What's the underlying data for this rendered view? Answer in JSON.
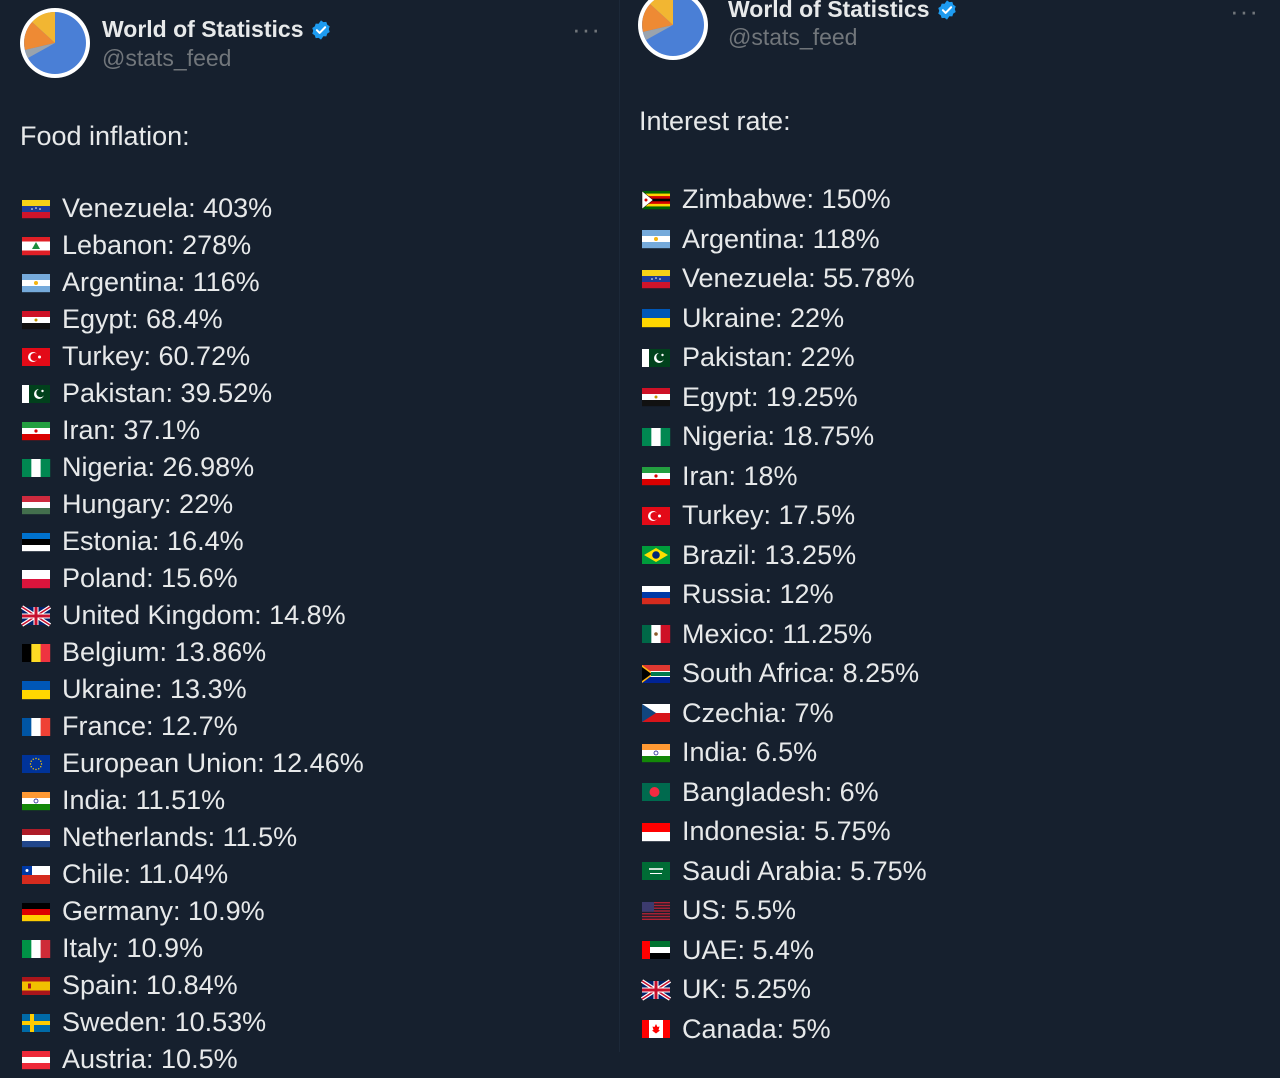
{
  "left_tweet": {
    "author": {
      "name": "World of Statistics",
      "handle": "@stats_feed"
    },
    "more_label": "···",
    "heading": "Food inflation:",
    "items": [
      {
        "text": "Venezuela: 403%",
        "flag": "ve"
      },
      {
        "text": "Lebanon: 278%",
        "flag": "lb"
      },
      {
        "text": "Argentina: 116%",
        "flag": "ar"
      },
      {
        "text": "Egypt: 68.4%",
        "flag": "eg"
      },
      {
        "text": "Turkey: 60.72%",
        "flag": "tr"
      },
      {
        "text": "Pakistan: 39.52%",
        "flag": "pk"
      },
      {
        "text": "Iran: 37.1%",
        "flag": "ir"
      },
      {
        "text": "Nigeria: 26.98%",
        "flag": "ng"
      },
      {
        "text": "Hungary: 22%",
        "flag": "hu"
      },
      {
        "text": "Estonia: 16.4%",
        "flag": "ee"
      },
      {
        "text": "Poland: 15.6%",
        "flag": "pl"
      },
      {
        "text": "United Kingdom: 14.8%",
        "flag": "gb"
      },
      {
        "text": "Belgium: 13.86%",
        "flag": "be"
      },
      {
        "text": "Ukraine: 13.3%",
        "flag": "ua"
      },
      {
        "text": "France: 12.7%",
        "flag": "fr"
      },
      {
        "text": "European Union: 12.46%",
        "flag": "eu"
      },
      {
        "text": "India: 11.51%",
        "flag": "in"
      },
      {
        "text": "Netherlands: 11.5%",
        "flag": "nl"
      },
      {
        "text": "Chile: 11.04%",
        "flag": "cl"
      },
      {
        "text": "Germany: 10.9%",
        "flag": "de"
      },
      {
        "text": "Italy: 10.9%",
        "flag": "it"
      },
      {
        "text": "Spain: 10.84%",
        "flag": "es"
      },
      {
        "text": "Sweden: 10.53%",
        "flag": "se"
      },
      {
        "text": "Austria: 10.5%",
        "flag": "at"
      }
    ]
  },
  "right_tweet": {
    "author": {
      "name": "World of Statistics",
      "handle": "@stats_feed"
    },
    "more_label": "···",
    "heading": "Interest rate:",
    "items": [
      {
        "text": "Zimbabwe: 150%",
        "flag": "zw"
      },
      {
        "text": "Argentina: 118%",
        "flag": "ar"
      },
      {
        "text": "Venezuela: 55.78%",
        "flag": "ve"
      },
      {
        "text": "Ukraine: 22%",
        "flag": "ua"
      },
      {
        "text": "Pakistan: 22%",
        "flag": "pk"
      },
      {
        "text": "Egypt: 19.25%",
        "flag": "eg"
      },
      {
        "text": "Nigeria: 18.75%",
        "flag": "ng"
      },
      {
        "text": "Iran: 18%",
        "flag": "ir"
      },
      {
        "text": "Turkey: 17.5%",
        "flag": "tr"
      },
      {
        "text": "Brazil: 13.25%",
        "flag": "br"
      },
      {
        "text": "Russia: 12%",
        "flag": "ru"
      },
      {
        "text": "Mexico: 11.25%",
        "flag": "mx"
      },
      {
        "text": "South Africa: 8.25%",
        "flag": "za"
      },
      {
        "text": "Czechia: 7%",
        "flag": "cz"
      },
      {
        "text": "India: 6.5%",
        "flag": "in"
      },
      {
        "text": "Bangladesh: 6%",
        "flag": "bd"
      },
      {
        "text": "Indonesia: 5.75%",
        "flag": "id"
      },
      {
        "text": "Saudi Arabia: 5.75%",
        "flag": "sa"
      },
      {
        "text": "US: 5.5%",
        "flag": "us"
      },
      {
        "text": "UAE: 5.4%",
        "flag": "ae"
      },
      {
        "text": "UK: 5.25%",
        "flag": "gb"
      },
      {
        "text": "Canada: 5%",
        "flag": "ca"
      }
    ]
  },
  "colors": {
    "background": "#16202e",
    "text": "#e7e9ea",
    "secondary_text": "#71767b",
    "verified_badge": "#1d9bf0"
  }
}
